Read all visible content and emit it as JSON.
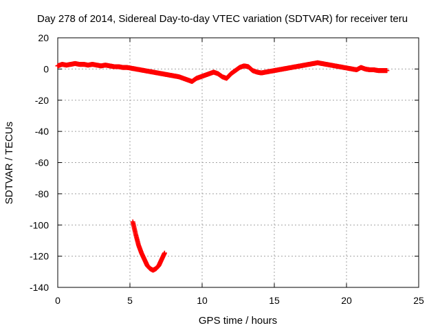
{
  "chart_data": {
    "type": "scatter",
    "title": "Day 278 of 2014, Sidereal Day-to-day VTEC variation (SDTVAR) for receiver teru",
    "xlabel": "GPS time / hours",
    "ylabel": "SDTVAR / TECUs",
    "xlim": [
      0,
      25
    ],
    "ylim": [
      -140,
      20
    ],
    "xticks": [
      0,
      5,
      10,
      15,
      20,
      25
    ],
    "yticks": [
      20,
      0,
      -20,
      -40,
      -60,
      -80,
      -100,
      -120,
      -140
    ],
    "grid": true,
    "legend": "none",
    "marker": "plus",
    "color": "#ff0000",
    "series": [
      {
        "x": [
          0.0,
          0.3,
          0.6,
          0.9,
          1.2,
          1.5,
          1.8,
          2.1,
          2.4,
          2.7,
          3.0,
          3.3,
          3.6,
          3.9,
          4.2,
          4.5,
          4.8,
          5.1,
          5.4,
          5.7,
          6.0,
          6.3,
          6.6,
          6.9,
          7.2,
          7.5,
          7.8,
          8.1,
          8.4,
          8.7,
          9.0,
          9.3,
          9.6,
          9.9,
          10.2,
          10.5,
          10.8,
          11.1,
          11.4,
          11.7,
          12.0,
          12.3,
          12.6,
          12.9,
          13.2,
          13.5,
          13.8,
          14.1,
          14.4,
          14.7,
          15.0,
          15.3,
          15.6,
          15.9,
          16.2,
          16.5,
          16.8,
          17.1,
          17.4,
          17.7,
          18.0,
          18.3,
          18.6,
          18.9,
          19.2,
          19.5,
          19.8,
          20.1,
          20.4,
          20.7,
          21.0,
          21.3,
          21.6,
          21.9,
          22.2,
          22.5,
          22.8
        ],
        "y": [
          2,
          3,
          2.5,
          3,
          3.5,
          3,
          3,
          2.5,
          3,
          2.5,
          2,
          2.5,
          2,
          1.5,
          1.5,
          1,
          1,
          0.5,
          0,
          -0.5,
          -1,
          -1.5,
          -2,
          -2.5,
          -3,
          -3.5,
          -4,
          -4.5,
          -5,
          -6,
          -7,
          -8,
          -6,
          -5,
          -4,
          -3,
          -2,
          -3,
          -5,
          -6,
          -3,
          -1,
          1,
          2,
          1.5,
          -1,
          -2,
          -2.5,
          -2,
          -1.5,
          -1,
          -0.5,
          0,
          0.5,
          1,
          1.5,
          2,
          2.5,
          3,
          3.5,
          4,
          3.5,
          3,
          2.5,
          2,
          1.5,
          1,
          0.5,
          0,
          -0.5,
          1,
          0,
          -0.5,
          -0.5,
          -1,
          -1,
          -1
        ]
      },
      {
        "x": [
          5.2,
          5.4,
          5.6,
          5.8,
          6.0,
          6.2,
          6.4,
          6.6,
          6.8,
          7.0,
          7.2,
          7.4
        ],
        "y": [
          -98,
          -106,
          -113,
          -118,
          -122,
          -126,
          -128,
          -129,
          -128,
          -126,
          -122,
          -118
        ]
      }
    ]
  }
}
